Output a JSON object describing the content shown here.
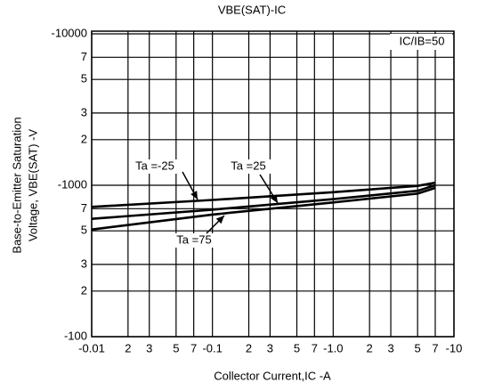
{
  "chart_data": {
    "type": "line",
    "title": "VBE(SAT)-IC",
    "x_label": "Collector Current,IC -A",
    "y_label": [
      "Base-to-Emitter Saturation",
      "Voltage, VBE(SAT) -V"
    ],
    "annotation": "IC/IB=50",
    "log_x": true,
    "log_y": true,
    "grid": true,
    "x": [
      -0.01,
      -0.1,
      -1,
      -5,
      -7
    ],
    "series": [
      {
        "name": "Ta =-25",
        "color": "#000000",
        "values": [
          -720,
          -800,
          -900,
          -990,
          -1040
        ]
      },
      {
        "name": "Ta =25",
        "color": "#000000",
        "values": [
          -600,
          -690,
          -810,
          -920,
          -1000
        ]
      },
      {
        "name": "Ta =75",
        "color": "#000000",
        "values": [
          -510,
          -640,
          -770,
          -880,
          -960
        ]
      }
    ],
    "xlim": [
      -0.01,
      -10
    ],
    "xticks": [
      {
        "value": -0.01,
        "label": "-0.01"
      },
      {
        "value": -0.02,
        "label": "2"
      },
      {
        "value": -0.03,
        "label": "3"
      },
      {
        "value": -0.05,
        "label": "5"
      },
      {
        "value": -0.07,
        "label": "7"
      },
      {
        "value": -0.1,
        "label": "-0.1"
      },
      {
        "value": -0.2,
        "label": "2"
      },
      {
        "value": -0.3,
        "label": "3"
      },
      {
        "value": -0.5,
        "label": "5"
      },
      {
        "value": -0.7,
        "label": "7"
      },
      {
        "value": -1,
        "label": "-1.0"
      },
      {
        "value": -2,
        "label": "2"
      },
      {
        "value": -3,
        "label": "3"
      },
      {
        "value": -5,
        "label": "5"
      },
      {
        "value": -7,
        "label": "7"
      },
      -10
    ],
    "ylim": [
      -100,
      -10000
    ],
    "yticks": [
      -100,
      {
        "value": -200,
        "label": "2"
      },
      {
        "value": -300,
        "label": "3"
      },
      {
        "value": -500,
        "label": "5"
      },
      {
        "value": -700,
        "label": "7"
      },
      -1000,
      {
        "value": -2000,
        "label": "2"
      },
      {
        "value": -3000,
        "label": "3"
      },
      {
        "value": -5000,
        "label": "5"
      },
      {
        "value": -7000,
        "label": "7"
      },
      -10000
    ]
  }
}
